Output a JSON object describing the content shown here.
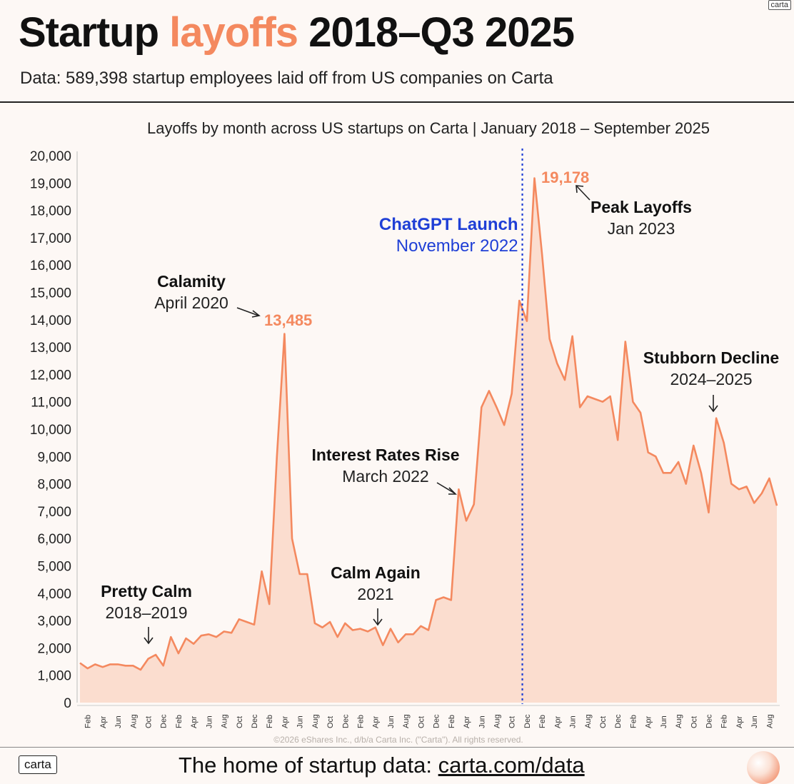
{
  "header": {
    "title_pre": "Startup",
    "title_accent": "layoffs",
    "title_post": "2018–Q3 2025",
    "subtitle": "Data: 589,398 startup employees laid off from US companies on Carta",
    "logo": "carta"
  },
  "footer": {
    "logo": "carta",
    "text": "The home of startup data:",
    "link": "carta.com/data",
    "badge_icon": "carta-badge-icon"
  },
  "colors": {
    "line": "#f4895f",
    "fill": "#fbd9cb",
    "highlight": "#f4895f",
    "chatgpt": "#1f3fd6"
  },
  "chart_data": {
    "type": "area",
    "title": "Layoffs by month across US startups on Carta | January 2018 – September 2025",
    "xlabel": "",
    "ylabel": "",
    "ylim": [
      0,
      20000
    ],
    "y_ticks": [
      0,
      1000,
      2000,
      3000,
      4000,
      5000,
      6000,
      7000,
      8000,
      9000,
      10000,
      11000,
      12000,
      13000,
      14000,
      15000,
      16000,
      17000,
      18000,
      19000,
      20000
    ],
    "y_tick_labels": [
      "0",
      "1,000",
      "2,000",
      "3,000",
      "4,000",
      "5,000",
      "6,000",
      "7,000",
      "8,000",
      "9,000",
      "10,000",
      "11,000",
      "12,000",
      "13,000",
      "14,000",
      "15,000",
      "16,000",
      "17,000",
      "18,000",
      "19,000",
      "20,000"
    ],
    "x_tick_labels": [
      "Feb",
      "Apr",
      "Jun",
      "Aug",
      "Oct",
      "Dec",
      "Feb",
      "Apr",
      "Jun",
      "Aug",
      "Oct",
      "Dec",
      "Feb",
      "Apr",
      "Jun",
      "Aug",
      "Oct",
      "Dec",
      "Feb",
      "Apr",
      "Jun",
      "Aug",
      "Oct",
      "Dec",
      "Feb",
      "Apr",
      "Jun",
      "Aug",
      "Oct",
      "Dec",
      "Feb",
      "Apr",
      "Jun",
      "Aug",
      "Oct",
      "Dec",
      "Feb",
      "Apr",
      "Jun",
      "Aug",
      "Oct",
      "Dec",
      "Feb",
      "Apr",
      "Jun",
      "Aug"
    ],
    "x_start": "2018-01",
    "values": [
      1450,
      1250,
      1400,
      1300,
      1400,
      1400,
      1350,
      1350,
      1200,
      1600,
      1750,
      1350,
      2400,
      1800,
      2350,
      2150,
      2450,
      2500,
      2400,
      2600,
      2550,
      3050,
      2950,
      2850,
      4800,
      3600,
      9000,
      13485,
      6000,
      4700,
      4700,
      2900,
      2750,
      2950,
      2400,
      2900,
      2650,
      2700,
      2600,
      2750,
      2100,
      2700,
      2200,
      2500,
      2500,
      2800,
      2650,
      3750,
      3850,
      3750,
      7800,
      6650,
      7250,
      10800,
      11400,
      10800,
      10150,
      11300,
      14700,
      13950,
      19178,
      16400,
      13300,
      12400,
      11800,
      13400,
      10800,
      11200,
      11100,
      11000,
      11200,
      9600,
      13200,
      11000,
      10600,
      9150,
      9000,
      8400,
      8400,
      8800,
      8000,
      9400,
      8400,
      6950,
      10400,
      9500,
      8000,
      7800,
      7900,
      7300,
      7650,
      8200,
      7200
    ],
    "vline": {
      "month_index": 58.4,
      "label_line1": "ChatGPT Launch",
      "label_line2": "November 2022"
    },
    "annotations": [
      {
        "id": "pretty-calm",
        "bold": "Pretty Calm",
        "sub": "2018–2019"
      },
      {
        "id": "calamity",
        "bold": "Calamity",
        "sub": "April 2020",
        "value_label": "13,485"
      },
      {
        "id": "calm-again",
        "bold": "Calm Again",
        "sub": "2021"
      },
      {
        "id": "interest-rates",
        "bold": "Interest Rates Rise",
        "sub": "March 2022"
      },
      {
        "id": "peak",
        "bold": "Peak Layoffs",
        "sub": "Jan 2023",
        "value_label": "19,178"
      },
      {
        "id": "stubborn",
        "bold": "Stubborn Decline",
        "sub": "2024–2025"
      }
    ],
    "copyright": "©2026 eShares Inc., d/b/a Carta Inc. (\"Carta\"). All rights reserved.",
    "grid": false
  }
}
